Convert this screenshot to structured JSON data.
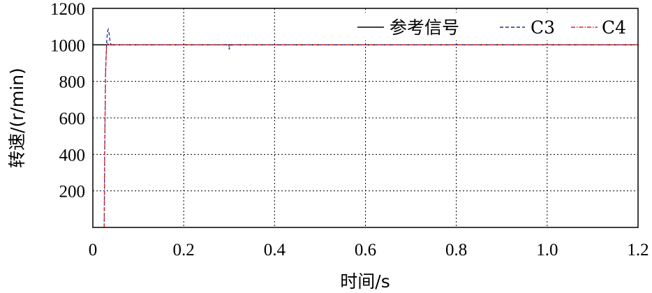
{
  "chart_data": {
    "type": "line",
    "xlabel": "时间/s",
    "ylabel": "转速/(r/min)",
    "xlim": [
      0,
      1.2
    ],
    "ylim": [
      0,
      1200
    ],
    "xticks": [
      0,
      0.2,
      0.4,
      0.6,
      0.8,
      1.0,
      1.2
    ],
    "xtick_labels": [
      "0",
      "0.2",
      "0.4",
      "0.6",
      "0.8",
      "1.0",
      "1.2"
    ],
    "yticks": [
      200,
      400,
      600,
      800,
      1000,
      1200
    ],
    "ytick_labels": [
      "200",
      "400",
      "600",
      "800",
      "1000",
      "1200"
    ],
    "grid": true,
    "legend_position": "top-right",
    "series": [
      {
        "name": "参考信号",
        "color": "#000000",
        "style": "solid",
        "x": [
          0,
          1.2
        ],
        "y": [
          1000,
          1000
        ]
      },
      {
        "name": "C3",
        "color": "#1f2f8f",
        "style": "dashed",
        "x": [
          0.025,
          0.026,
          0.028,
          0.03,
          0.032,
          0.034,
          0.036,
          0.038,
          0.04,
          0.045,
          0.05,
          0.299,
          0.3,
          0.301,
          0.303,
          0.31,
          1.2
        ],
        "y": [
          0,
          400,
          850,
          990,
          1070,
          1085,
          1060,
          1020,
          1000,
          998,
          1000,
          1000,
          975,
          985,
          998,
          1000,
          1000
        ]
      },
      {
        "name": "C4",
        "color": "#e02020",
        "style": "dashdot",
        "x": [
          0.025,
          0.026,
          0.028,
          0.03,
          0.032,
          0.034,
          0.036,
          0.04,
          0.05,
          0.299,
          0.3,
          0.302,
          0.31,
          1.2
        ],
        "y": [
          0,
          380,
          830,
          980,
          1010,
          1003,
          1000,
          1000,
          1000,
          1000,
          990,
          998,
          1000,
          1000
        ]
      }
    ]
  }
}
